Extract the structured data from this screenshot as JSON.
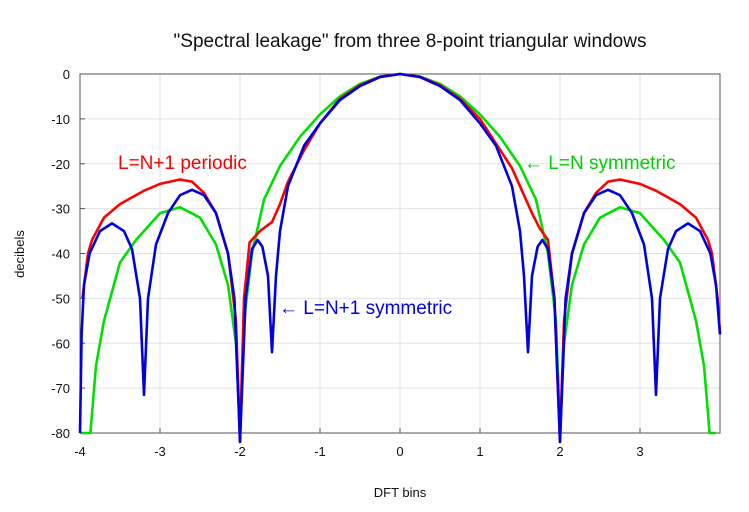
{
  "chart_data": {
    "type": "line",
    "title": "\"Spectral leakage\" from three 8-point triangular windows",
    "xlabel": "DFT bins",
    "ylabel": "decibels",
    "xlim": [
      -4,
      4
    ],
    "ylim": [
      -80,
      0
    ],
    "grid": true,
    "x_ticks": [
      -4,
      -3,
      -2,
      -1,
      0,
      1,
      2,
      3
    ],
    "x_tick_labels": [
      "-4",
      "-3",
      "-2",
      "-1",
      "0",
      "1",
      "2",
      "3"
    ],
    "y_ticks": [
      0,
      -10,
      -20,
      -30,
      -40,
      -50,
      -60,
      -70,
      -80
    ],
    "y_tick_labels": [
      "0",
      "-10",
      "-20",
      "-30",
      "-40",
      "-50",
      "-60",
      "-70",
      "-80"
    ],
    "series": [
      {
        "name": "L=N symmetric",
        "color": "#00e000",
        "points": [
          [
            -4,
            -80
          ],
          [
            -3.87,
            -80
          ],
          [
            -3.8,
            -65
          ],
          [
            -3.7,
            -55
          ],
          [
            -3.5,
            -42
          ],
          [
            -3.3,
            -37
          ],
          [
            -3,
            -31
          ],
          [
            -2.75,
            -29.7
          ],
          [
            -2.5,
            -32
          ],
          [
            -2.3,
            -38
          ],
          [
            -2.15,
            -47
          ],
          [
            -2.05,
            -60
          ],
          [
            -2,
            -80
          ],
          [
            -1.95,
            -55
          ],
          [
            -1.85,
            -40
          ],
          [
            -1.7,
            -28
          ],
          [
            -1.5,
            -20.5
          ],
          [
            -1.25,
            -14
          ],
          [
            -1,
            -9
          ],
          [
            -0.75,
            -5
          ],
          [
            -0.5,
            -2.2
          ],
          [
            -0.25,
            -0.6
          ],
          [
            0,
            0
          ],
          [
            0.25,
            -0.6
          ],
          [
            0.5,
            -2.2
          ],
          [
            0.75,
            -5
          ],
          [
            1,
            -9
          ],
          [
            1.25,
            -14
          ],
          [
            1.5,
            -20.5
          ],
          [
            1.7,
            -28
          ],
          [
            1.85,
            -40
          ],
          [
            1.95,
            -55
          ],
          [
            2,
            -80
          ],
          [
            2.05,
            -60
          ],
          [
            2.15,
            -47
          ],
          [
            2.3,
            -38
          ],
          [
            2.5,
            -32
          ],
          [
            2.75,
            -29.7
          ],
          [
            3,
            -31
          ],
          [
            3.3,
            -37
          ],
          [
            3.5,
            -42
          ],
          [
            3.7,
            -55
          ],
          [
            3.8,
            -65
          ],
          [
            3.87,
            -80
          ],
          [
            3.95,
            -80
          ]
        ]
      },
      {
        "name": "L=N+1 periodic",
        "color": "#ff0000",
        "points": [
          [
            -3.97,
            -50
          ],
          [
            -3.9,
            -40
          ],
          [
            -3.85,
            -37
          ],
          [
            -3.7,
            -32
          ],
          [
            -3.5,
            -29
          ],
          [
            -3.2,
            -26
          ],
          [
            -3,
            -24.5
          ],
          [
            -2.75,
            -23.5
          ],
          [
            -2.6,
            -24
          ],
          [
            -2.45,
            -26.5
          ],
          [
            -2.3,
            -31
          ],
          [
            -2.15,
            -40
          ],
          [
            -2.05,
            -55
          ],
          [
            -2,
            -82
          ],
          [
            -1.95,
            -50
          ],
          [
            -1.88,
            -37.5
          ],
          [
            -1.75,
            -35
          ],
          [
            -1.6,
            -33
          ],
          [
            -1.5,
            -29
          ],
          [
            -1.4,
            -24
          ],
          [
            -1.2,
            -17
          ],
          [
            -1,
            -11
          ],
          [
            -0.75,
            -5.5
          ],
          [
            -0.5,
            -2.5
          ],
          [
            -0.25,
            -0.6
          ],
          [
            0,
            0
          ],
          [
            0.25,
            -0.6
          ],
          [
            0.5,
            -2.5
          ],
          [
            0.75,
            -5.5
          ],
          [
            1,
            -10
          ],
          [
            1.2,
            -15.5
          ],
          [
            1.4,
            -21
          ],
          [
            1.55,
            -27
          ],
          [
            1.65,
            -31
          ],
          [
            1.75,
            -34.5
          ],
          [
            1.85,
            -37
          ],
          [
            1.93,
            -50
          ],
          [
            2,
            -82
          ],
          [
            2.05,
            -55
          ],
          [
            2.15,
            -40
          ],
          [
            2.3,
            -31
          ],
          [
            2.45,
            -26.5
          ],
          [
            2.6,
            -24
          ],
          [
            2.75,
            -23.5
          ],
          [
            3,
            -24.5
          ],
          [
            3.2,
            -26
          ],
          [
            3.5,
            -29
          ],
          [
            3.7,
            -32
          ],
          [
            3.85,
            -37
          ],
          [
            3.9,
            -40
          ],
          [
            3.97,
            -50
          ],
          [
            4,
            -58
          ]
        ]
      },
      {
        "name": "L=N+1 symmetric",
        "color": "#0000e0",
        "points": [
          [
            -4,
            -80
          ],
          [
            -3.98,
            -58
          ],
          [
            -3.95,
            -47
          ],
          [
            -3.88,
            -40
          ],
          [
            -3.75,
            -35
          ],
          [
            -3.6,
            -33.3
          ],
          [
            -3.45,
            -35
          ],
          [
            -3.35,
            -39
          ],
          [
            -3.25,
            -50
          ],
          [
            -3.2,
            -71.5
          ],
          [
            -3.15,
            -50
          ],
          [
            -3.05,
            -38
          ],
          [
            -2.9,
            -31
          ],
          [
            -2.75,
            -27
          ],
          [
            -2.6,
            -25.8
          ],
          [
            -2.45,
            -27
          ],
          [
            -2.3,
            -31
          ],
          [
            -2.15,
            -40
          ],
          [
            -2.07,
            -50
          ],
          [
            -2,
            -82
          ],
          [
            -1.93,
            -50
          ],
          [
            -1.85,
            -39
          ],
          [
            -1.78,
            -37
          ],
          [
            -1.72,
            -38.5
          ],
          [
            -1.65,
            -45
          ],
          [
            -1.6,
            -62
          ],
          [
            -1.55,
            -45
          ],
          [
            -1.5,
            -35
          ],
          [
            -1.4,
            -25
          ],
          [
            -1.2,
            -16
          ],
          [
            -1,
            -11
          ],
          [
            -0.75,
            -5.8
          ],
          [
            -0.5,
            -2.7
          ],
          [
            -0.25,
            -0.7
          ],
          [
            0,
            0
          ],
          [
            0.25,
            -0.7
          ],
          [
            0.5,
            -2.7
          ],
          [
            0.75,
            -5.8
          ],
          [
            1,
            -11
          ],
          [
            1.2,
            -16
          ],
          [
            1.4,
            -25
          ],
          [
            1.5,
            -35
          ],
          [
            1.55,
            -45
          ],
          [
            1.6,
            -62
          ],
          [
            1.65,
            -45
          ],
          [
            1.72,
            -38.5
          ],
          [
            1.78,
            -37
          ],
          [
            1.85,
            -39
          ],
          [
            1.93,
            -50
          ],
          [
            2,
            -82
          ],
          [
            2.07,
            -50
          ],
          [
            2.15,
            -40
          ],
          [
            2.3,
            -31
          ],
          [
            2.45,
            -27
          ],
          [
            2.6,
            -25.8
          ],
          [
            2.75,
            -27
          ],
          [
            2.9,
            -31
          ],
          [
            3.05,
            -38
          ],
          [
            3.15,
            -50
          ],
          [
            3.2,
            -71.5
          ],
          [
            3.25,
            -50
          ],
          [
            3.35,
            -39
          ],
          [
            3.45,
            -35
          ],
          [
            3.6,
            -33.3
          ],
          [
            3.75,
            -35
          ],
          [
            3.88,
            -40
          ],
          [
            3.95,
            -47
          ],
          [
            4,
            -58
          ]
        ]
      }
    ],
    "annotations": [
      {
        "text": "L=N+1 periodic",
        "color": "#ff0000"
      },
      {
        "text": "← L=N symmetric",
        "color": "#00e000"
      },
      {
        "text": "← L=N+1 symmetric",
        "color": "#0000e0"
      }
    ]
  }
}
